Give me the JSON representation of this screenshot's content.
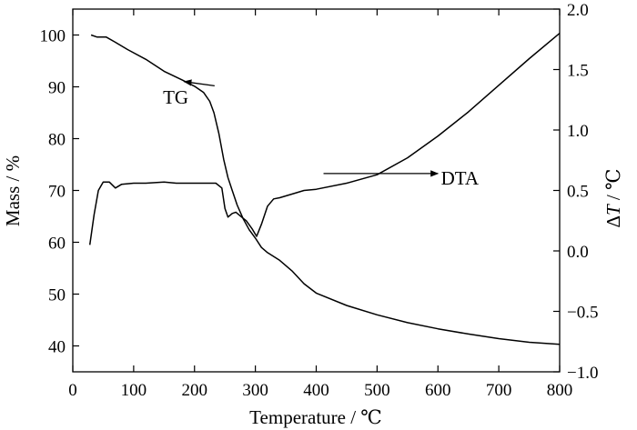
{
  "chart_data": {
    "type": "line",
    "xlabel": "Temperature / ℃",
    "ylabel_left": "Mass / %",
    "ylabel_right_symbol": "Δ",
    "ylabel_right_var": "T",
    "ylabel_right_unit": " / ℃",
    "xlim": [
      0,
      800
    ],
    "ylim_left": [
      35,
      105
    ],
    "ylim_right": [
      -1.0,
      2.0
    ],
    "xticks": [
      0,
      100,
      200,
      300,
      400,
      500,
      600,
      700,
      800
    ],
    "yticks_left": [
      40,
      50,
      60,
      70,
      80,
      90,
      100
    ],
    "yticks_right": [
      -1.0,
      -0.5,
      0.0,
      0.5,
      1.0,
      1.5,
      2.0
    ],
    "yticks_right_labels": [
      "−1.0",
      "−0.5",
      "0.0",
      "0.5",
      "1.0",
      "1.5",
      "2.0"
    ],
    "grid": false,
    "series": [
      {
        "name": "TG",
        "axis": "left",
        "x": [
          30,
          40,
          55,
          70,
          90,
          120,
          150,
          180,
          200,
          215,
          225,
          232,
          240,
          248,
          255,
          262,
          270,
          280,
          290,
          300,
          310,
          320,
          340,
          360,
          380,
          400,
          450,
          500,
          550,
          600,
          650,
          700,
          750,
          800
        ],
        "y": [
          100,
          99.6,
          99.6,
          98.6,
          97.2,
          95.3,
          93.0,
          91.3,
          90.1,
          88.9,
          87.2,
          85.0,
          81.0,
          76.0,
          72.5,
          70.0,
          67.2,
          64.5,
          62.4,
          60.8,
          59.0,
          58.0,
          56.5,
          54.5,
          52.0,
          50.2,
          47.8,
          46.0,
          44.5,
          43.3,
          42.3,
          41.4,
          40.7,
          40.3
        ]
      },
      {
        "name": "DTA",
        "axis": "right",
        "x": [
          28,
          35,
          42,
          50,
          60,
          70,
          80,
          100,
          120,
          150,
          170,
          200,
          220,
          235,
          245,
          250,
          255,
          262,
          268,
          275,
          285,
          295,
          302,
          310,
          320,
          330,
          340,
          360,
          380,
          400,
          450,
          500,
          550,
          600,
          650,
          700,
          750,
          800
        ],
        "y": [
          0.05,
          0.3,
          0.5,
          0.57,
          0.57,
          0.52,
          0.55,
          0.56,
          0.56,
          0.57,
          0.56,
          0.56,
          0.56,
          0.56,
          0.52,
          0.35,
          0.28,
          0.31,
          0.32,
          0.29,
          0.25,
          0.18,
          0.12,
          0.22,
          0.37,
          0.43,
          0.44,
          0.47,
          0.5,
          0.51,
          0.56,
          0.63,
          0.77,
          0.95,
          1.15,
          1.37,
          1.59,
          1.8
        ]
      }
    ],
    "annotations": [
      {
        "text": "TG",
        "x": 190,
        "y_left": 88,
        "arrow_from": [
          233,
          90.2
        ],
        "arrow_to": [
          183,
          91
        ]
      },
      {
        "text": "DTA",
        "x": 605,
        "y_right": 0.6,
        "arrow_from": [
          412,
          0.64
        ],
        "arrow_to": [
          600,
          0.64
        ]
      }
    ]
  }
}
